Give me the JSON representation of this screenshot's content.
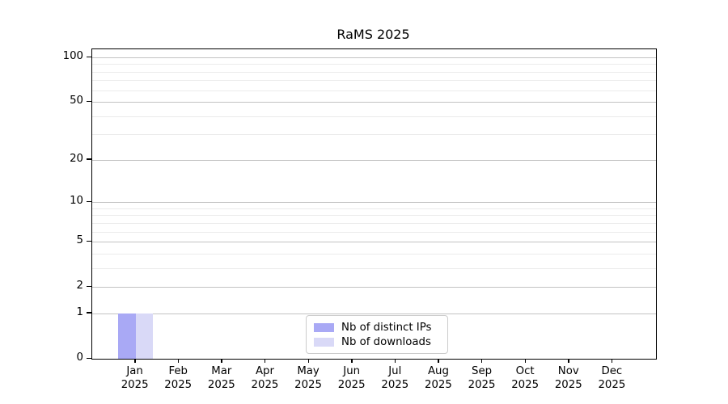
{
  "chart_data": {
    "type": "bar",
    "title": "RaMS 2025",
    "categories": [
      "Jan 2025",
      "Feb 2025",
      "Mar 2025",
      "Apr 2025",
      "May 2025",
      "Jun 2025",
      "Jul 2025",
      "Aug 2025",
      "Sep 2025",
      "Oct 2025",
      "Nov 2025",
      "Dec 2025"
    ],
    "series": [
      {
        "name": "Nb of distinct IPs",
        "color": "#a9a9f5",
        "values": [
          1,
          0,
          0,
          0,
          0,
          0,
          0,
          0,
          0,
          0,
          0,
          0
        ]
      },
      {
        "name": "Nb of downloads",
        "color": "#d9d9f7",
        "values": [
          1,
          0,
          0,
          0,
          0,
          0,
          0,
          0,
          0,
          0,
          0,
          0
        ]
      }
    ],
    "xlabel": "",
    "ylabel": "",
    "yscale": "log1p",
    "yticks": [
      0,
      1,
      2,
      5,
      10,
      20,
      50,
      100
    ],
    "yticks_minor": [
      3,
      4,
      6,
      7,
      8,
      9,
      30,
      40,
      60,
      70,
      80,
      90
    ],
    "ylim": [
      0,
      113
    ],
    "grid": "horizontal",
    "legend_position": "inside-bottom-center",
    "colors": {
      "background": "#ffffff",
      "frame": "#000000",
      "grid_major": "#c3c3c3",
      "grid_minor": "#ebebeb",
      "tick_text": "#000000",
      "legend_border": "#cccccc"
    }
  }
}
